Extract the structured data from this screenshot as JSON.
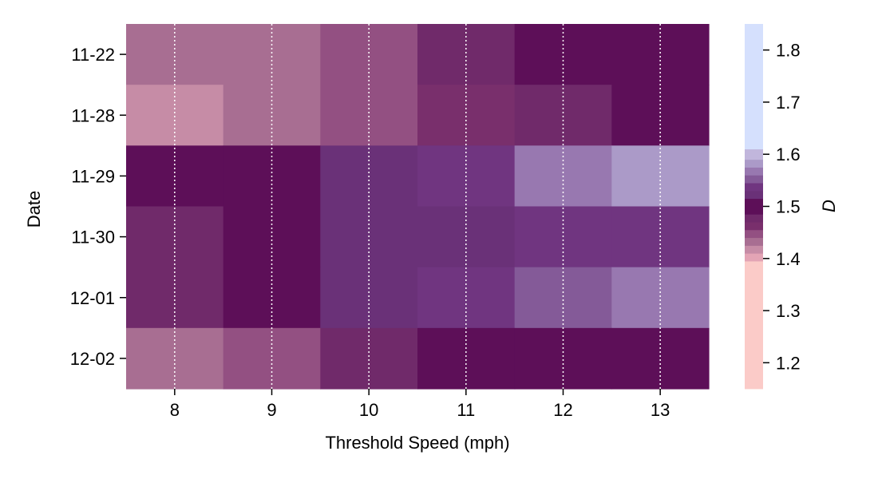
{
  "chart_data": {
    "type": "heatmap",
    "title": "",
    "xlabel": "Threshold Speed (mph)",
    "ylabel": "Date",
    "x_categories": [
      "8",
      "9",
      "10",
      "11",
      "12",
      "13"
    ],
    "y_categories": [
      "11-22",
      "11-28",
      "11-29",
      "11-30",
      "12-01",
      "12-02"
    ],
    "values": [
      [
        1.43,
        1.43,
        1.45,
        1.47,
        1.5,
        1.5
      ],
      [
        1.42,
        1.43,
        1.44,
        1.46,
        1.48,
        1.5
      ],
      [
        1.5,
        1.5,
        1.52,
        1.54,
        1.56,
        1.58
      ],
      [
        1.48,
        1.5,
        1.52,
        1.52,
        1.53,
        1.54
      ],
      [
        1.48,
        1.5,
        1.52,
        1.54,
        1.55,
        1.56
      ],
      [
        1.43,
        1.45,
        1.47,
        1.5,
        1.5,
        1.5
      ]
    ],
    "colorbar": {
      "label": "D",
      "range": [
        1.15,
        1.85
      ],
      "ticks": [
        "1.2",
        "1.3",
        "1.4",
        "1.5",
        "1.6",
        "1.7",
        "1.8"
      ],
      "tick_values": [
        1.2,
        1.3,
        1.4,
        1.5,
        1.6,
        1.7,
        1.8
      ],
      "bands": [
        {
          "from": 1.15,
          "to": 1.395,
          "color": "#fbcbc8"
        },
        {
          "from": 1.395,
          "to": 1.41,
          "color": "#e3a4b5"
        },
        {
          "from": 1.41,
          "to": 1.425,
          "color": "#c68ca6"
        },
        {
          "from": 1.425,
          "to": 1.44,
          "color": "#a86e92"
        },
        {
          "from": 1.44,
          "to": 1.455,
          "color": "#935082"
        },
        {
          "from": 1.455,
          "to": 1.47,
          "color": "#792f6c"
        },
        {
          "from": 1.47,
          "to": 1.485,
          "color": "#702a6a"
        },
        {
          "from": 1.485,
          "to": 1.515,
          "color": "#5d0f58"
        },
        {
          "from": 1.515,
          "to": 1.53,
          "color": "#6a3178"
        },
        {
          "from": 1.53,
          "to": 1.545,
          "color": "#703580"
        },
        {
          "from": 1.545,
          "to": 1.56,
          "color": "#845a98"
        },
        {
          "from": 1.56,
          "to": 1.575,
          "color": "#9878b0"
        },
        {
          "from": 1.575,
          "to": 1.59,
          "color": "#ab9ac8"
        },
        {
          "from": 1.59,
          "to": 1.61,
          "color": "#c1b6dc"
        },
        {
          "from": 1.61,
          "to": 1.85,
          "color": "#d5e0fd"
        }
      ]
    },
    "grid": "vertical white dotted lines at x tick positions",
    "legend": "colorbar at right"
  }
}
